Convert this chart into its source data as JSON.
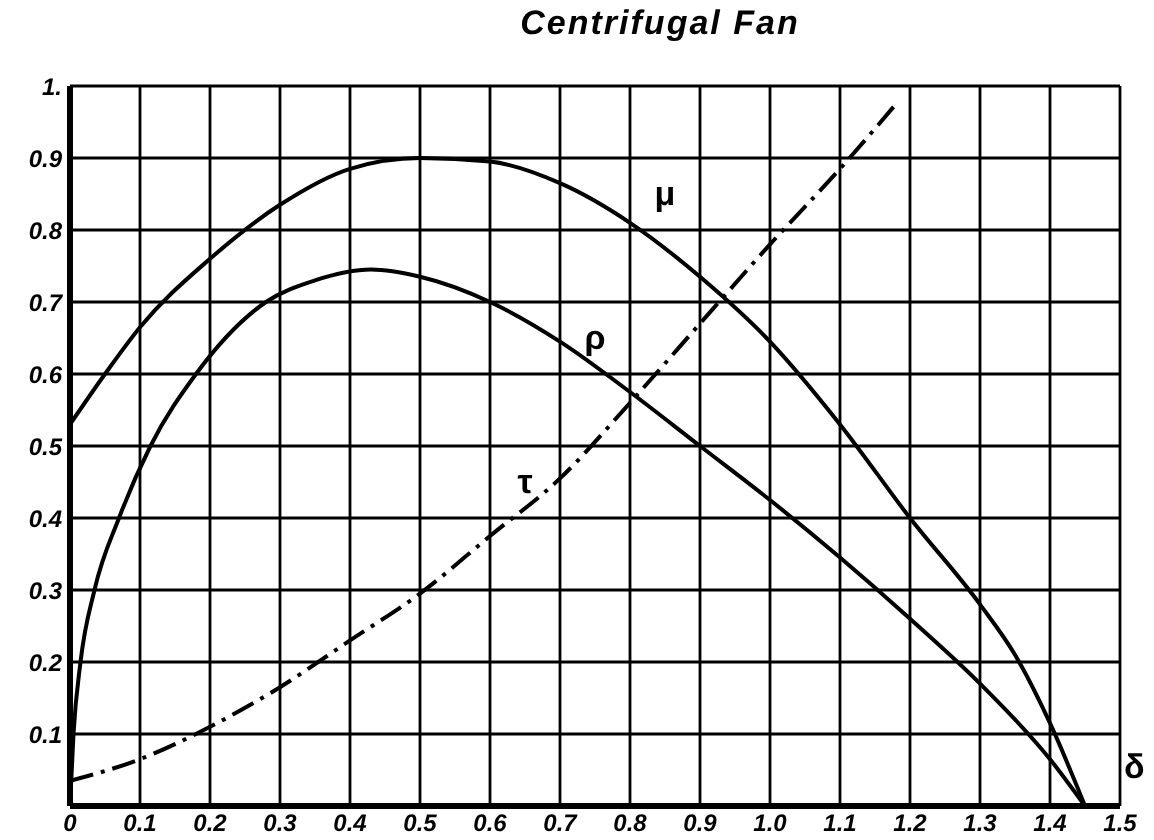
{
  "chart_data": {
    "type": "line",
    "title": "Centrifugal Fan",
    "xlabel": "δ",
    "series": [
      {
        "name": "μ",
        "color": "#000000",
        "line_style": "solid",
        "x": [
          0,
          0.05,
          0.1,
          0.2,
          0.3,
          0.4,
          0.5,
          0.6,
          0.7,
          0.8,
          0.9,
          1.0,
          1.1,
          1.2,
          1.3,
          1.35,
          1.4,
          1.45
        ],
        "values": [
          0.53,
          0.6,
          0.665,
          0.76,
          0.835,
          0.885,
          0.9,
          0.895,
          0.865,
          0.81,
          0.735,
          0.645,
          0.53,
          0.4,
          0.28,
          0.21,
          0.115,
          0
        ]
      },
      {
        "name": "ρ",
        "color": "#000000",
        "line_style": "solid",
        "x": [
          0,
          0.005,
          0.015,
          0.035,
          0.07,
          0.115,
          0.18,
          0.28,
          0.35,
          0.43,
          0.5,
          0.6,
          0.7,
          0.8,
          0.9,
          1.0,
          1.1,
          1.2,
          1.3,
          1.4,
          1.45
        ],
        "values": [
          0,
          0.1,
          0.2,
          0.3,
          0.4,
          0.5,
          0.6,
          0.7,
          0.73,
          0.745,
          0.735,
          0.7,
          0.645,
          0.575,
          0.5,
          0.425,
          0.345,
          0.26,
          0.17,
          0.065,
          0
        ]
      },
      {
        "name": "τ",
        "color": "#000000",
        "line_style": "dashed",
        "x": [
          0,
          0.1,
          0.2,
          0.3,
          0.4,
          0.5,
          0.6,
          0.7,
          0.8,
          0.9,
          1.0,
          1.1,
          1.18
        ],
        "values": [
          0.035,
          0.065,
          0.11,
          0.165,
          0.23,
          0.295,
          0.375,
          0.455,
          0.56,
          0.67,
          0.78,
          0.885,
          0.975
        ]
      }
    ],
    "xlim": [
      0,
      1.5
    ],
    "xticks": [
      0,
      0.1,
      0.2,
      0.3,
      0.4,
      0.5,
      0.6,
      0.7,
      0.8,
      0.9,
      {
        "value": 1,
        "label": "1.0"
      },
      1.1,
      1.2,
      1.3,
      1.4,
      1.5
    ],
    "ylim": [
      0,
      1
    ],
    "yticks": [
      {
        "value": 0,
        "label": null
      },
      0.1,
      0.2,
      0.3,
      0.4,
      0.5,
      0.6,
      0.7,
      0.8,
      0.9,
      {
        "value": 1,
        "label": "1."
      }
    ],
    "grid": true,
    "marker": "none"
  }
}
